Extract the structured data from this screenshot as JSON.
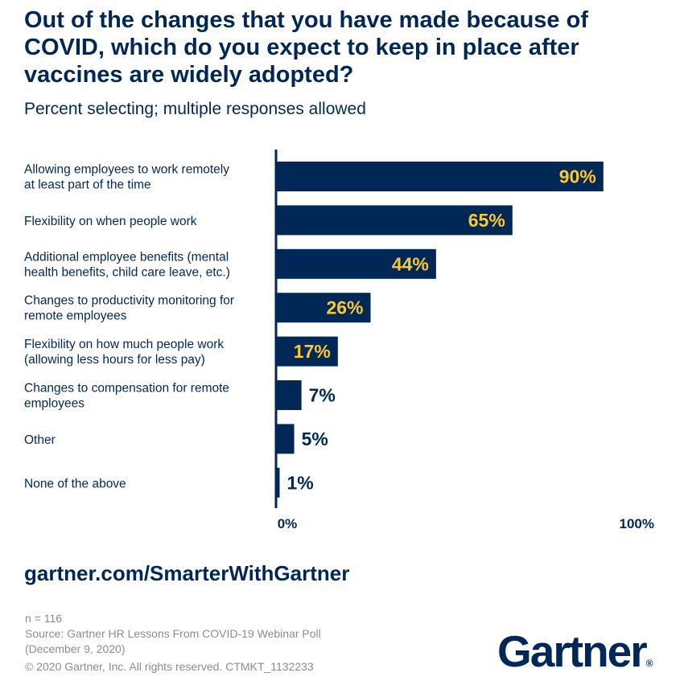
{
  "chart_data": {
    "type": "bar",
    "orientation": "horizontal",
    "title": "Out of the changes that you have made because of COVID, which do you expect to keep in place after vaccines are widely adopted?",
    "subtitle": "Percent selecting; multiple responses allowed",
    "categories": [
      [
        "Allowing employees to work remotely",
        "at least part of the time"
      ],
      [
        "Flexibility on when people work"
      ],
      [
        "Additional employee benefits (mental",
        "health benefits, child care leave, etc.)"
      ],
      [
        "Changes to productivity monitoring for",
        "remote employees"
      ],
      [
        "Flexibility on how much people work",
        "(allowing less hours for less pay)"
      ],
      [
        "Changes to compensation for remote",
        "employees"
      ],
      [
        "Other"
      ],
      [
        "None of the above"
      ]
    ],
    "values": [
      90,
      65,
      44,
      26,
      17,
      7,
      5,
      1
    ],
    "data_labels": [
      "90%",
      "65%",
      "44%",
      "26%",
      "17%",
      "7%",
      "5%",
      "1%"
    ],
    "xlim": [
      0,
      100
    ],
    "tick_labels": [
      "0%",
      "100%"
    ],
    "grid": false,
    "colors": {
      "bar": "#002856",
      "label_inside": "#FFC72C",
      "label_outside": "#002856"
    }
  },
  "footer": {
    "url": "gartner.com/SmarterWithGartner",
    "n": "n = 116",
    "source_line1": "Source: Gartner HR Lessons From COVID-19 Webinar Poll",
    "source_line2": "(December 9, 2020)",
    "copyright": "© 2020 Gartner, Inc. All rights reserved. CTMKT_1132233",
    "logo": "Gartner"
  }
}
